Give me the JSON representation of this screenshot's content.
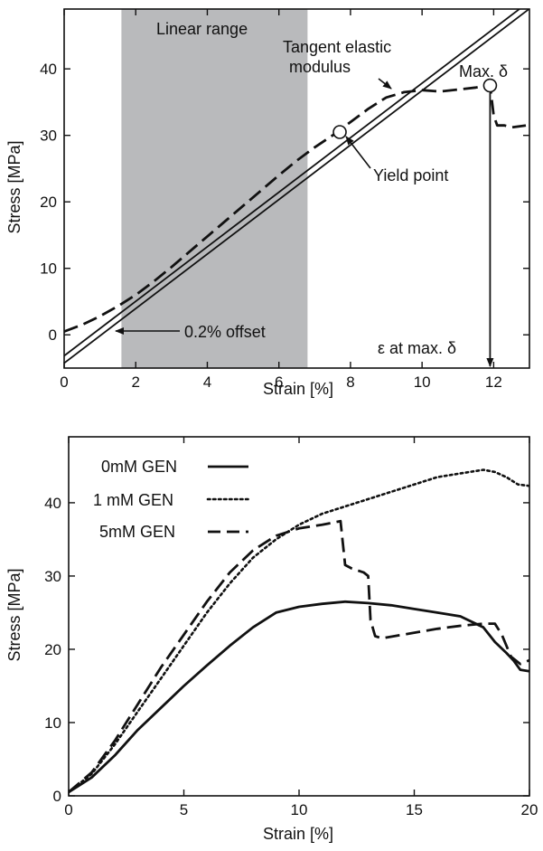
{
  "chart_data": [
    {
      "type": "line",
      "xlabel": "Strain [%]",
      "ylabel": "Stress [MPa]",
      "xlim": [
        0,
        13
      ],
      "ylim": [
        -5,
        49
      ],
      "xticks": [
        0,
        2,
        4,
        6,
        8,
        10,
        12
      ],
      "yticks": [
        0,
        10,
        20,
        30,
        40
      ],
      "grid": false,
      "shaded_region": {
        "label": "Linear range",
        "x": [
          1.6,
          6.8
        ]
      },
      "series": [
        {
          "style": "dashed",
          "x": [
            0,
            0.5,
            1,
            1.5,
            2,
            2.5,
            3,
            3.5,
            4,
            4.5,
            5,
            5.5,
            6,
            6.5,
            7,
            7.5,
            8,
            8.5,
            9,
            9.5,
            10,
            10.5,
            11,
            11.5,
            11.9,
            12.0,
            12.1,
            12.3,
            12.5,
            12.9
          ],
          "y": [
            0.5,
            1.5,
            2.8,
            4.3,
            6.0,
            8.0,
            10.2,
            12.5,
            14.8,
            17.1,
            19.4,
            21.7,
            24.0,
            26.2,
            28.2,
            30.0,
            32.0,
            34.0,
            35.7,
            36.5,
            36.8,
            36.6,
            36.9,
            37.2,
            37.5,
            33.0,
            31.5,
            31.5,
            31.2,
            31.5
          ]
        },
        {
          "style": "solid",
          "x": [
            -0.5,
            13.5
          ],
          "y": [
            -5.2,
            52.2
          ]
        },
        {
          "style": "solid",
          "x": [
            -0.5,
            13.5
          ],
          "y": [
            -6.3,
            51.1
          ]
        }
      ],
      "annotations": {
        "linear_range": "Linear range",
        "tangent_1": "Tangent elastic",
        "tangent_2": "modulus",
        "max": "Max. δ",
        "yield": "Yield point",
        "offset": "0.2% offset",
        "eps": "ε at max. δ"
      },
      "points": {
        "yield": {
          "x": 7.7,
          "y": 30.5
        },
        "max": {
          "x": 11.9,
          "y": 37.5
        }
      }
    },
    {
      "type": "line",
      "xlabel": "Strain [%]",
      "ylabel": "Stress [MPa]",
      "xlim": [
        0,
        20
      ],
      "ylim": [
        0,
        49
      ],
      "xticks": [
        0,
        5,
        10,
        15,
        20
      ],
      "yticks": [
        0,
        10,
        20,
        30,
        40
      ],
      "grid": false,
      "legend": "top-left",
      "series": [
        {
          "name": "0mM GEN",
          "style": "solid",
          "x": [
            0,
            1,
            2,
            3,
            4,
            5,
            6,
            7,
            8,
            9,
            10,
            11,
            12,
            13,
            14,
            15,
            16,
            17,
            18,
            18.5,
            19,
            19.3,
            19.6,
            20
          ],
          "y": [
            0.5,
            2.5,
            5.5,
            9,
            12,
            15,
            17.8,
            20.5,
            23,
            25,
            25.8,
            26.2,
            26.5,
            26.3,
            26.0,
            25.5,
            25.0,
            24.5,
            23.0,
            21.0,
            19.5,
            18.5,
            17.2,
            17.0
          ]
        },
        {
          "name": "1 mM GEN",
          "style": "dotted",
          "x": [
            0,
            1,
            2,
            3,
            4,
            5,
            6,
            7,
            8,
            9,
            10,
            11,
            12,
            13,
            14,
            15,
            16,
            17,
            18,
            18.5,
            19,
            19.5,
            20
          ],
          "y": [
            0.5,
            3,
            7,
            11.5,
            16,
            20.5,
            25,
            29,
            32.5,
            35,
            37,
            38.5,
            39.5,
            40.5,
            41.5,
            42.5,
            43.5,
            44,
            44.5,
            44.2,
            43.5,
            42.5,
            42.3
          ]
        },
        {
          "name": "5mM GEN",
          "style": "dashed",
          "x": [
            0,
            1,
            2,
            3,
            4,
            5,
            6,
            7,
            8,
            9,
            10,
            11,
            11.5,
            11.8,
            12.0,
            12.3,
            12.8,
            13.0,
            13.1,
            13.3,
            13.6,
            14.5,
            16,
            17,
            18,
            18.5,
            18.8,
            19.2,
            19.6,
            20
          ],
          "y": [
            0.5,
            3.2,
            7.5,
            12.5,
            17.5,
            22,
            26.5,
            30.5,
            33.5,
            35.5,
            36.5,
            37.0,
            37.3,
            37.5,
            31.5,
            31.0,
            30.5,
            30.0,
            24.0,
            21.8,
            21.5,
            22.0,
            22.8,
            23.2,
            23.5,
            23.5,
            22.0,
            19.0,
            18.0,
            18.5
          ]
        }
      ]
    }
  ]
}
